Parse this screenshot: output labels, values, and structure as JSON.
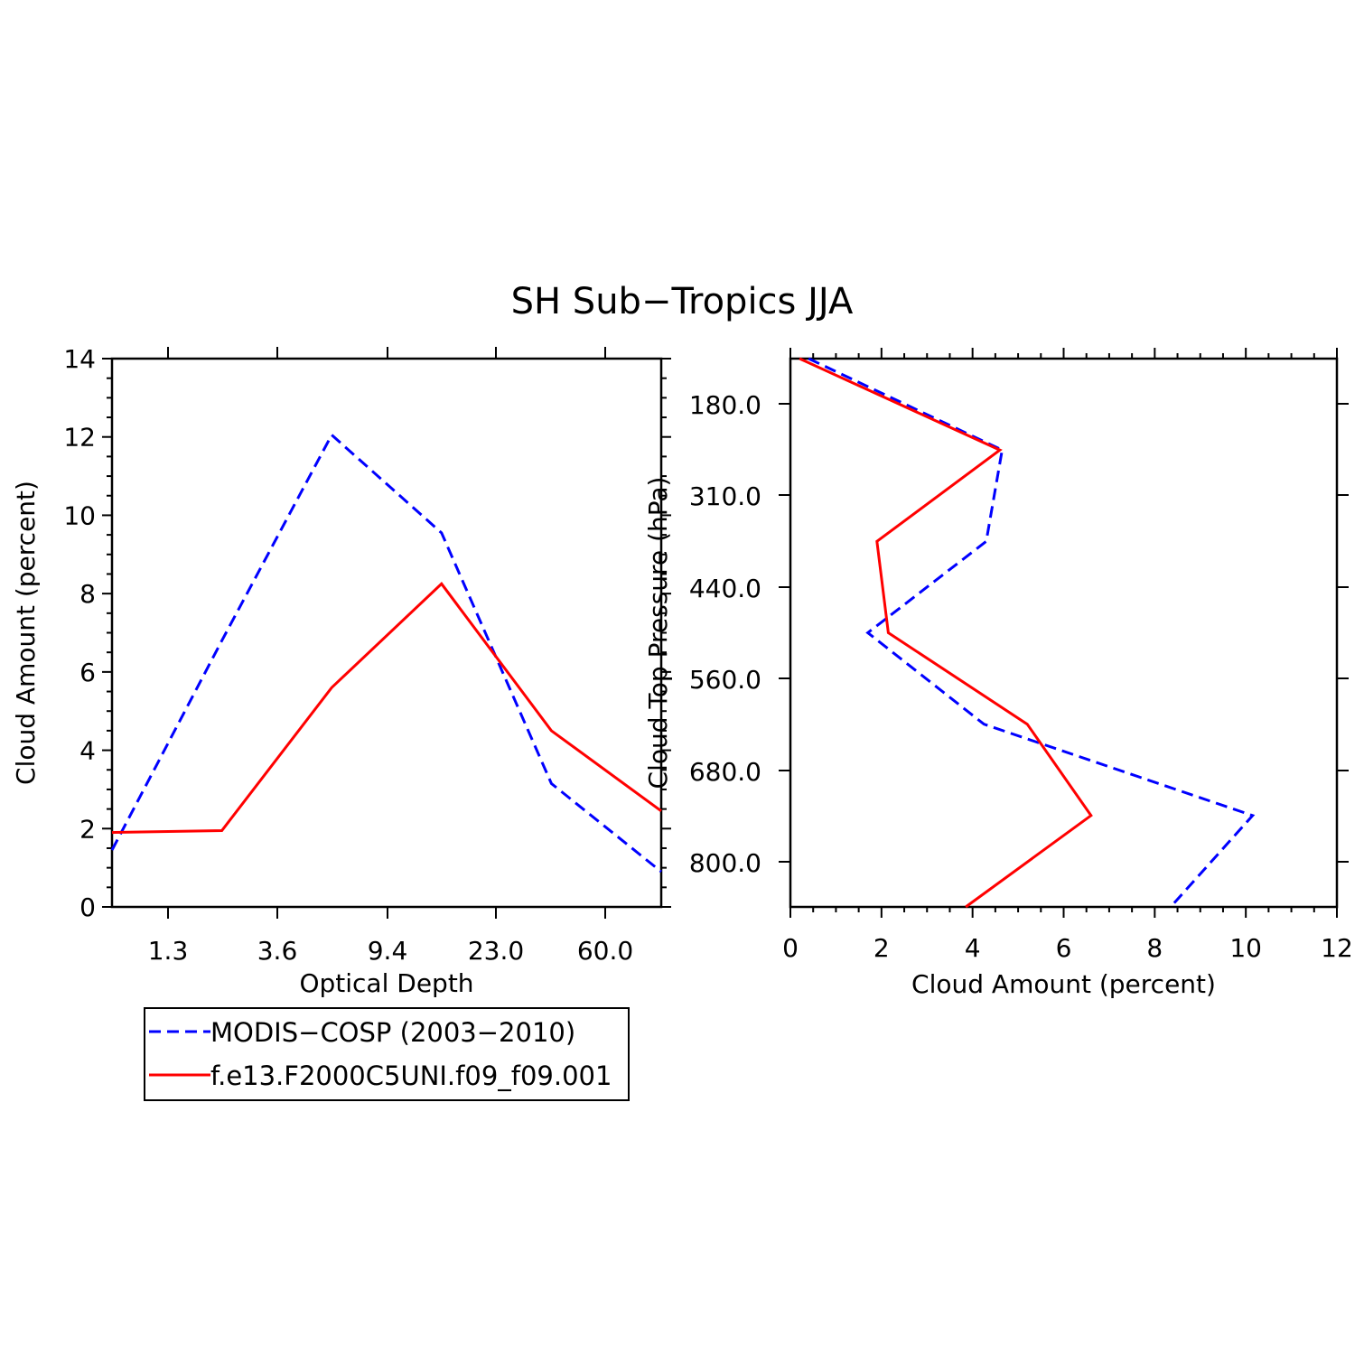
{
  "figure": {
    "title": "SH Sub−Tropics JJA"
  },
  "colors": {
    "obs": "#0000ff",
    "model": "#ff0000",
    "axis": "#000000"
  },
  "legend": {
    "placement": "bottom-left",
    "entries": [
      {
        "label": "MODIS−COSP (2003−2010)",
        "color": "#0000ff",
        "style": "dashed"
      },
      {
        "label": "f.e13.F2000C5UNI.f09_f09.001",
        "color": "#ff0000",
        "style": "solid"
      }
    ]
  },
  "chart_data": [
    {
      "type": "line",
      "xlabel": "Optical Depth",
      "ylabel": "Cloud Amount (percent)",
      "ylim": [
        0,
        14
      ],
      "yticks": [
        "0",
        "2",
        "4",
        "6",
        "8",
        "10",
        "12",
        "14"
      ],
      "xticks": [
        "1.3",
        "3.6",
        "9.4",
        "23.0",
        "60.0"
      ],
      "x_bin_index": [
        0,
        1,
        2,
        3,
        4,
        5
      ],
      "series": [
        {
          "name": "MODIS−COSP (2003−2010)",
          "style": "dashed",
          "values": [
            1.45,
            6.8,
            12.05,
            9.55,
            3.15,
            0.9
          ]
        },
        {
          "name": "f.e13.F2000C5UNI.f09_f09.001",
          "style": "solid",
          "values": [
            1.9,
            1.95,
            5.6,
            8.25,
            4.5,
            2.45
          ]
        }
      ]
    },
    {
      "type": "line",
      "orientation": "vertical-profile",
      "xlabel": "Cloud Amount (percent)",
      "ylabel": "Cloud Top Pressure (hPa)",
      "xlim": [
        0,
        12
      ],
      "xticks": [
        "0",
        "2",
        "4",
        "6",
        "8",
        "10",
        "12"
      ],
      "yticks": [
        "180.0",
        "310.0",
        "440.0",
        "560.0",
        "680.0",
        "800.0"
      ],
      "y_bin_index": [
        0,
        1,
        2,
        3,
        4,
        5,
        6
      ],
      "series": [
        {
          "name": "MODIS−COSP (2003−2010)",
          "style": "dashed",
          "values": [
            0.4,
            4.65,
            4.3,
            1.7,
            4.25,
            10.15,
            8.35
          ]
        },
        {
          "name": "f.e13.F2000C5UNI.f09_f09.001",
          "style": "solid",
          "values": [
            0.2,
            4.6,
            1.9,
            2.15,
            5.2,
            6.6,
            3.85
          ]
        }
      ]
    }
  ]
}
